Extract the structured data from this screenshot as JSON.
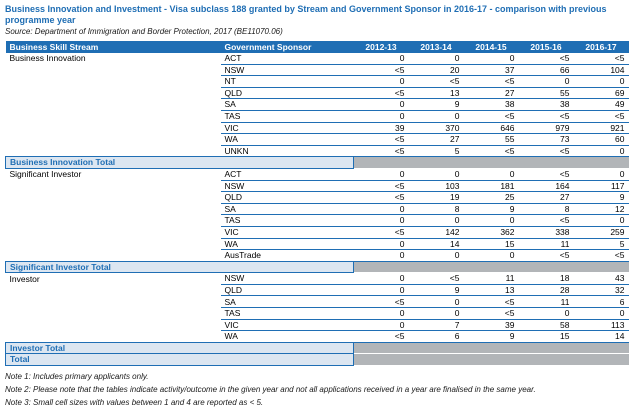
{
  "title": "Business Innovation and Investment - Visa subclass 188 granted by Stream and Government Sponsor in 2016-17 - comparison with previous programme year",
  "source": "Source: Department of Immigration and Border Protection, 2017 (BE11070.06)",
  "colors": {
    "header_blue": "#1f6eb4",
    "total_row_bg": "#dce6f1",
    "total_row_text": "#1f6eb4",
    "blank_cell_gray": "#b2b5b8",
    "row_border_blue": "#1f6eb4"
  },
  "table": {
    "columns": [
      "Business Skill Stream",
      "Government Sponsor",
      "2012-13",
      "2013-14",
      "2014-15",
      "2015-16",
      "2016-17"
    ],
    "sections": [
      {
        "stream": "Business Innovation",
        "rows": [
          {
            "sponsor": "ACT",
            "values": [
              "0",
              "0",
              "0",
              "<5",
              "<5"
            ]
          },
          {
            "sponsor": "NSW",
            "values": [
              "<5",
              "20",
              "37",
              "66",
              "104"
            ]
          },
          {
            "sponsor": "NT",
            "values": [
              "0",
              "<5",
              "<5",
              "0",
              "0"
            ]
          },
          {
            "sponsor": "QLD",
            "values": [
              "<5",
              "13",
              "27",
              "55",
              "69"
            ]
          },
          {
            "sponsor": "SA",
            "values": [
              "0",
              "9",
              "38",
              "38",
              "49"
            ]
          },
          {
            "sponsor": "TAS",
            "values": [
              "0",
              "0",
              "<5",
              "<5",
              "<5"
            ]
          },
          {
            "sponsor": "VIC",
            "values": [
              "39",
              "370",
              "646",
              "979",
              "921"
            ]
          },
          {
            "sponsor": "WA",
            "values": [
              "<5",
              "27",
              "55",
              "73",
              "60"
            ]
          },
          {
            "sponsor": "UNKN",
            "values": [
              "<5",
              "5",
              "<5",
              "<5",
              "0"
            ]
          }
        ],
        "total_label": "Business Innovation Total"
      },
      {
        "stream": "Significant Investor",
        "rows": [
          {
            "sponsor": "ACT",
            "values": [
              "0",
              "0",
              "0",
              "<5",
              "0"
            ]
          },
          {
            "sponsor": "NSW",
            "values": [
              "<5",
              "103",
              "181",
              "164",
              "117"
            ]
          },
          {
            "sponsor": "QLD",
            "values": [
              "<5",
              "19",
              "25",
              "27",
              "9"
            ]
          },
          {
            "sponsor": "SA",
            "values": [
              "0",
              "8",
              "9",
              "8",
              "12"
            ]
          },
          {
            "sponsor": "TAS",
            "values": [
              "0",
              "0",
              "0",
              "<5",
              "0"
            ]
          },
          {
            "sponsor": "VIC",
            "values": [
              "<5",
              "142",
              "362",
              "338",
              "259"
            ]
          },
          {
            "sponsor": "WA",
            "values": [
              "0",
              "14",
              "15",
              "11",
              "5"
            ]
          },
          {
            "sponsor": "AusTrade",
            "values": [
              "0",
              "0",
              "0",
              "<5",
              "<5"
            ]
          }
        ],
        "total_label": "Significant Investor Total"
      },
      {
        "stream": "Investor",
        "rows": [
          {
            "sponsor": "NSW",
            "values": [
              "0",
              "<5",
              "11",
              "18",
              "43"
            ]
          },
          {
            "sponsor": "QLD",
            "values": [
              "0",
              "9",
              "13",
              "28",
              "32"
            ]
          },
          {
            "sponsor": "SA",
            "values": [
              "<5",
              "0",
              "<5",
              "11",
              "6"
            ]
          },
          {
            "sponsor": "TAS",
            "values": [
              "0",
              "0",
              "<5",
              "0",
              "0"
            ]
          },
          {
            "sponsor": "VIC",
            "values": [
              "0",
              "7",
              "39",
              "58",
              "113"
            ]
          },
          {
            "sponsor": "WA",
            "values": [
              "<5",
              "6",
              "9",
              "15",
              "14"
            ]
          }
        ],
        "total_label": "Investor Total"
      }
    ],
    "grand_total_label": "Total"
  },
  "notes": [
    "Note 1: Includes primary applicants only.",
    "Note 2: Please note that the tables indicate activity/outcome in the given year and not all applications received in a year are finalised in the same year.",
    "Note 3: Small cell sizes with values between 1 and 4 are reported as < 5."
  ]
}
